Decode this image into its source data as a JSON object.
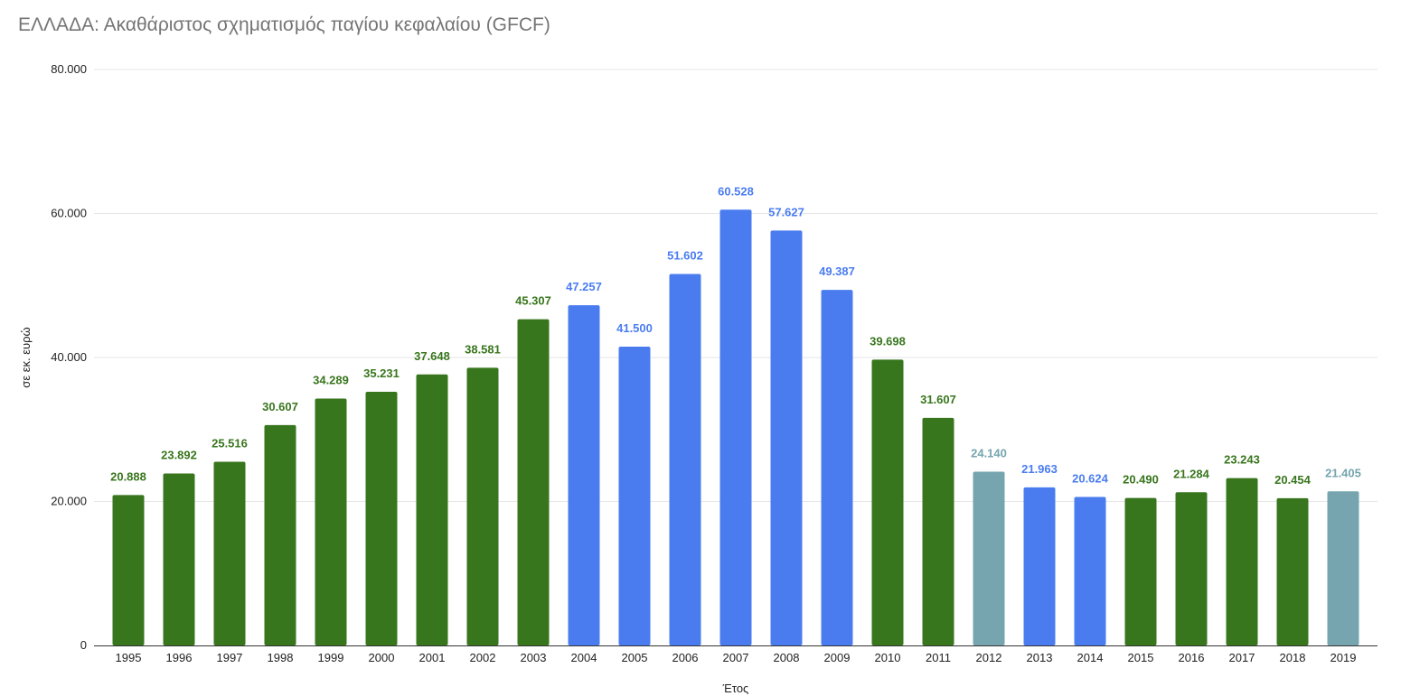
{
  "chart_data": {
    "type": "bar",
    "title": "ΕΛΛΑΔΑ: Ακαθάριστος σχηματισμός παγίου κεφαλαίου (GFCF)",
    "xlabel": "Έτος",
    "ylabel": "σε εκ. ευρώ",
    "ylim": [
      0,
      80000
    ],
    "yticks": [
      0,
      20000,
      40000,
      60000,
      80000
    ],
    "ytick_labels": [
      "0",
      "20.000",
      "40.000",
      "60.000",
      "80.000"
    ],
    "grid": true,
    "legend": "none",
    "categories": [
      "1995",
      "1996",
      "1997",
      "1998",
      "1999",
      "2000",
      "2001",
      "2002",
      "2003",
      "2004",
      "2005",
      "2006",
      "2007",
      "2008",
      "2009",
      "2010",
      "2011",
      "2012",
      "2013",
      "2014",
      "2015",
      "2016",
      "2017",
      "2018",
      "2019"
    ],
    "values": [
      20888,
      23892,
      25516,
      30607,
      34289,
      35231,
      37648,
      38581,
      45307,
      47257,
      41500,
      51602,
      60528,
      57627,
      49387,
      39698,
      31607,
      24140,
      21963,
      20624,
      20490,
      21284,
      23243,
      20454,
      21405
    ],
    "value_labels": [
      "20.888",
      "23.892",
      "25.516",
      "30.607",
      "34.289",
      "35.231",
      "37.648",
      "38.581",
      "45.307",
      "47.257",
      "41.500",
      "51.602",
      "60.528",
      "57.627",
      "49.387",
      "39.698",
      "31.607",
      "24.140",
      "21.963",
      "20.624",
      "20.490",
      "21.284",
      "23.243",
      "20.454",
      "21.405"
    ],
    "bar_colors": [
      "#38761d",
      "#38761d",
      "#38761d",
      "#38761d",
      "#38761d",
      "#38761d",
      "#38761d",
      "#38761d",
      "#38761d",
      "#4a7cf0",
      "#4a7cf0",
      "#4a7cf0",
      "#4a7cf0",
      "#4a7cf0",
      "#4a7cf0",
      "#38761d",
      "#38761d",
      "#76a5af",
      "#4a7cf0",
      "#4a7cf0",
      "#38761d",
      "#38761d",
      "#38761d",
      "#38761d",
      "#76a5af"
    ],
    "label_colors": [
      "#38761d",
      "#38761d",
      "#38761d",
      "#38761d",
      "#38761d",
      "#38761d",
      "#38761d",
      "#38761d",
      "#38761d",
      "#4a7cf0",
      "#4a7cf0",
      "#4a7cf0",
      "#4a7cf0",
      "#4a7cf0",
      "#4a7cf0",
      "#38761d",
      "#38761d",
      "#76a5af",
      "#4a7cf0",
      "#4a7cf0",
      "#38761d",
      "#38761d",
      "#38761d",
      "#38761d",
      "#76a5af"
    ]
  }
}
